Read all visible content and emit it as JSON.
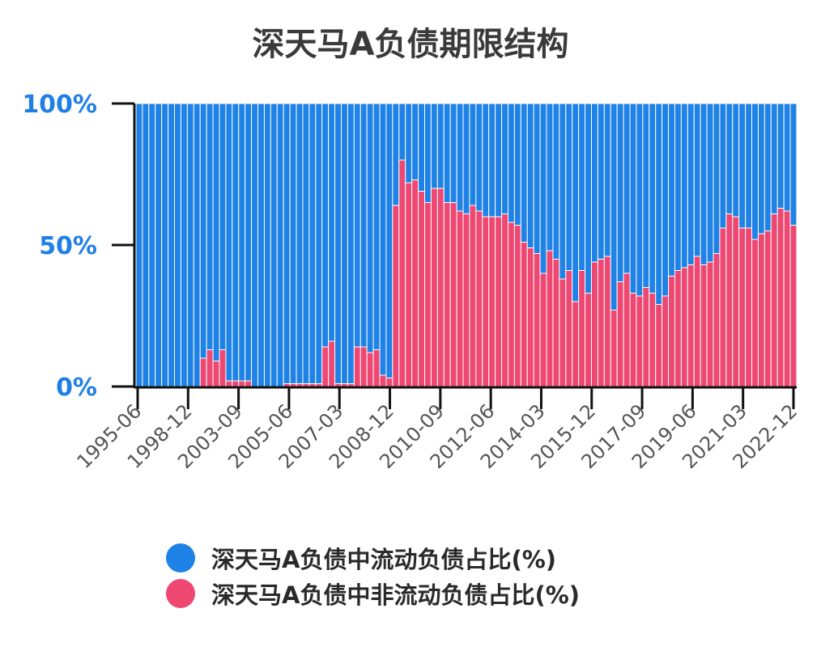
{
  "colors": {
    "current": "#1f82e6",
    "noncurrent": "#ee4872",
    "axis": "#111111"
  },
  "chart_data": {
    "type": "bar",
    "stacked": true,
    "title": "深天马A负债期限结构",
    "ylim": [
      0,
      100
    ],
    "y_ticks": [
      "0%",
      "50%",
      "100%"
    ],
    "x_tick_labels": [
      "1995-06",
      "1998-12",
      "2003-09",
      "2005-06",
      "2007-03",
      "2008-12",
      "2010-09",
      "2012-06",
      "2014-03",
      "2015-12",
      "2017-09",
      "2019-06",
      "2021-03",
      "2022-12"
    ],
    "series": [
      {
        "name": "深天马A负债中流动负债占比(%)",
        "color": "#1f82e6",
        "values": [
          100,
          100,
          100,
          100,
          100,
          100,
          100,
          100,
          100,
          100,
          90,
          87,
          91,
          87,
          98,
          98,
          98,
          98,
          100,
          100,
          100,
          100,
          100,
          99,
          99,
          99,
          99,
          99,
          99,
          86,
          84,
          99,
          99,
          99,
          86,
          86,
          88,
          87,
          96,
          97,
          36,
          20,
          28,
          27,
          31,
          35,
          30,
          30,
          35,
          35,
          38,
          39,
          36,
          38,
          40,
          40,
          40,
          39,
          42,
          43,
          49,
          51,
          53,
          60,
          52,
          55,
          62,
          59,
          70,
          59,
          67,
          56,
          55,
          54,
          73,
          63,
          60,
          67,
          68,
          65,
          67,
          71,
          68,
          61,
          59,
          58,
          57,
          54,
          57,
          56,
          53,
          44,
          39,
          40,
          44,
          44,
          48,
          46,
          45,
          39,
          37,
          38,
          43
        ]
      },
      {
        "name": "深天马A负债中非流动负债占比(%)",
        "color": "#ee4872",
        "values": [
          0,
          0,
          0,
          0,
          0,
          0,
          0,
          0,
          0,
          0,
          10,
          13,
          9,
          13,
          2,
          2,
          2,
          2,
          0,
          0,
          0,
          0,
          0,
          1,
          1,
          1,
          1,
          1,
          1,
          14,
          16,
          1,
          1,
          1,
          14,
          14,
          12,
          13,
          4,
          3,
          64,
          80,
          72,
          73,
          69,
          65,
          70,
          70,
          65,
          65,
          62,
          61,
          64,
          62,
          60,
          60,
          60,
          61,
          58,
          57,
          51,
          49,
          47,
          40,
          48,
          45,
          38,
          41,
          30,
          41,
          33,
          44,
          45,
          46,
          27,
          37,
          40,
          33,
          32,
          35,
          33,
          29,
          32,
          39,
          41,
          42,
          43,
          46,
          43,
          44,
          47,
          56,
          61,
          60,
          56,
          56,
          52,
          54,
          55,
          61,
          63,
          62,
          57
        ]
      }
    ]
  },
  "legend": {
    "current_label": "深天马A负债中流动负债占比(%)",
    "noncurrent_label": "深天马A负债中非流动负债占比(%)"
  }
}
